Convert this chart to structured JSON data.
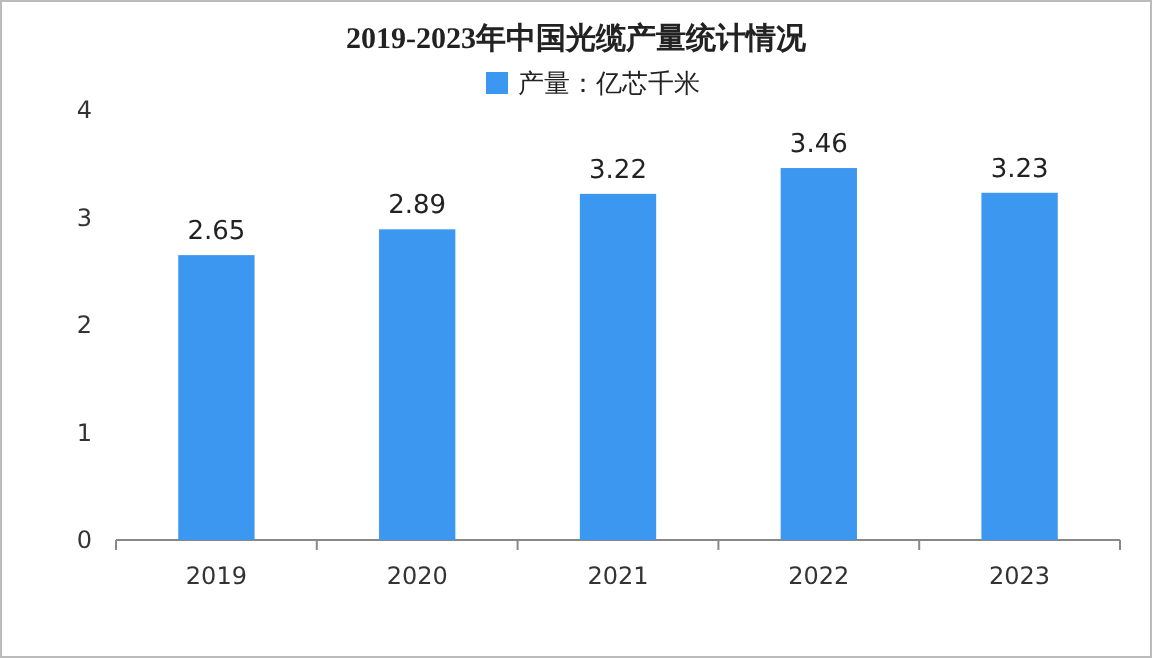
{
  "chart_data": {
    "type": "bar",
    "title": "2019-2023年中国光缆产量统计情况",
    "categories": [
      "2019",
      "2020",
      "2021",
      "2022",
      "2023"
    ],
    "series": [
      {
        "name": "产量：亿芯千米",
        "color": "#3b97ef",
        "values": [
          2.65,
          2.89,
          3.22,
          3.46,
          3.23
        ]
      }
    ],
    "ylim": [
      0,
      4
    ],
    "yticks": [
      0,
      1,
      2,
      3,
      4
    ],
    "data_labels": true,
    "legend": "top",
    "grid": false
  }
}
